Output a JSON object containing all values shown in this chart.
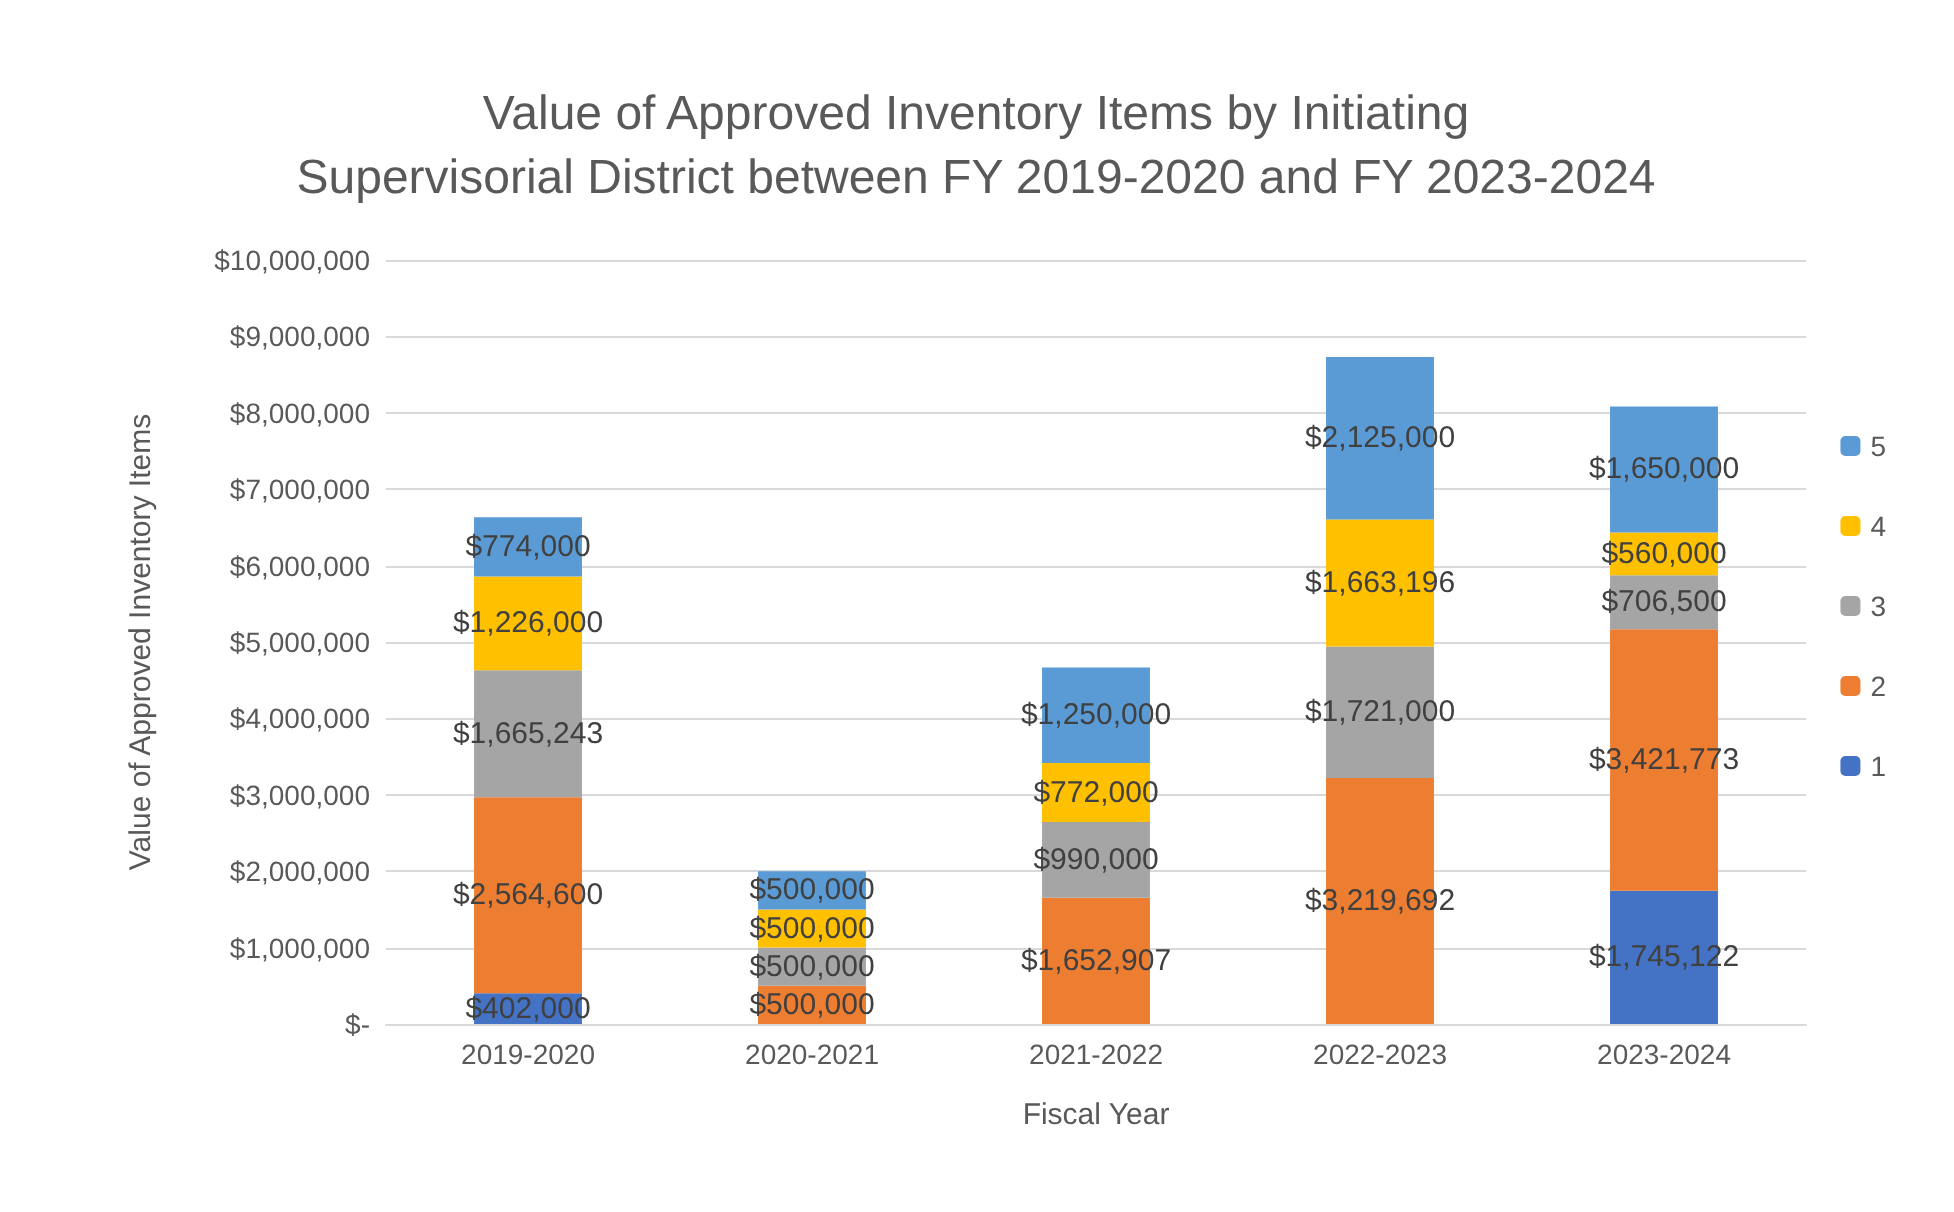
{
  "chart_data": {
    "type": "bar",
    "title": "Value of Approved Inventory Items by Initiating Supervisorial District between FY 2019-2020 and FY 2023-2024",
    "xlabel": "Fiscal Year",
    "ylabel": "Value of Approved Inventory Items",
    "categories": [
      "2019-2020",
      "2020-2021",
      "2021-2022",
      "2022-2023",
      "2023-2024"
    ],
    "stacked": true,
    "series": [
      {
        "name": "1",
        "color": "#4472c4",
        "values": [
          402000,
          null,
          null,
          null,
          1745122
        ],
        "value_labels": [
          "$402,000",
          null,
          null,
          null,
          "$1,745,122"
        ]
      },
      {
        "name": "2",
        "color": "#ed7d31",
        "values": [
          2564600,
          500000,
          1652907,
          3219692,
          3421773
        ],
        "value_labels": [
          "$2,564,600",
          "$500,000",
          "$1,652,907",
          "$3,219,692",
          "$3,421,773"
        ]
      },
      {
        "name": "3",
        "color": "#a5a5a5",
        "values": [
          1665243,
          500000,
          990000,
          1721000,
          706500
        ],
        "value_labels": [
          "$1,665,243",
          "$500,000",
          "$990,000",
          "$1,721,000",
          "$706,500"
        ]
      },
      {
        "name": "4",
        "color": "#ffc000",
        "values": [
          1226000,
          500000,
          772000,
          1663196,
          560000
        ],
        "value_labels": [
          "$1,226,000",
          "$500,000",
          "$772,000",
          "$1,663,196",
          "$560,000"
        ]
      },
      {
        "name": "5",
        "color": "#5b9bd5",
        "values": [
          774000,
          500000,
          1250000,
          2125000,
          1650000
        ],
        "value_labels": [
          "$774,000",
          "$500,000",
          "$1,250,000",
          "$2,125,000",
          "$1,650,000"
        ]
      }
    ],
    "ylim": [
      0,
      10000000
    ],
    "yticks": [
      {
        "value": 0,
        "label": "$-"
      },
      {
        "value": 1000000,
        "label": "$1,000,000"
      },
      {
        "value": 2000000,
        "label": "$2,000,000"
      },
      {
        "value": 3000000,
        "label": "$3,000,000"
      },
      {
        "value": 4000000,
        "label": "$4,000,000"
      },
      {
        "value": 5000000,
        "label": "$5,000,000"
      },
      {
        "value": 6000000,
        "label": "$6,000,000"
      },
      {
        "value": 7000000,
        "label": "$7,000,000"
      },
      {
        "value": 8000000,
        "label": "$8,000,000"
      },
      {
        "value": 9000000,
        "label": "$9,000,000"
      },
      {
        "value": 10000000,
        "label": "$10,000,000"
      }
    ],
    "grid": "y",
    "legend": "right"
  }
}
